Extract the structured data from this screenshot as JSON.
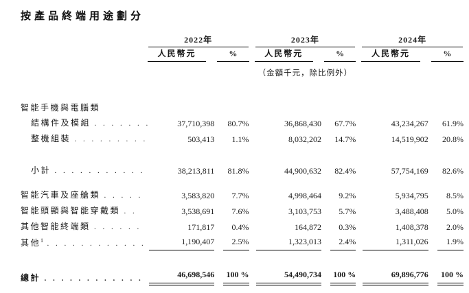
{
  "page": {
    "title": "按產品終端用途劃分"
  },
  "table": {
    "years": [
      "2022年",
      "2023年",
      "2024年"
    ],
    "col_headers": {
      "currency": "人民幣元",
      "percent": "%"
    },
    "unit_note": "（金額千元，除比例外）",
    "rows": [
      {
        "label": "智能手機與電腦類",
        "dots": "",
        "values": [
          "",
          "",
          "",
          "",
          "",
          ""
        ]
      },
      {
        "label": "結構件及模組",
        "dots": ". . . . . . .",
        "values": [
          "37,710,398",
          "80.7%",
          "36,868,430",
          "67.7%",
          "43,234,267",
          "61.9%"
        ]
      },
      {
        "label": "整機組裝",
        "dots": ". . . . . . . . . .",
        "values": [
          "503,413",
          "1.1%",
          "8,032,202",
          "14.7%",
          "14,519,902",
          "20.8%"
        ]
      },
      {
        "label": "小計",
        "dots": ". . . . . . . . . . . .",
        "values": [
          "38,213,811",
          "81.8%",
          "44,900,632",
          "82.4%",
          "57,754,169",
          "82.6%"
        ]
      },
      {
        "label": "智能汽車及座艙類",
        "dots": ". . . . .",
        "values": [
          "3,583,820",
          "7.7%",
          "4,998,464",
          "9.2%",
          "5,934,795",
          "8.5%"
        ]
      },
      {
        "label": "智能頭顯與智能穿戴類",
        "dots": ". .",
        "values": [
          "3,538,691",
          "7.6%",
          "3,103,753",
          "5.7%",
          "3,488,408",
          "5.0%"
        ]
      },
      {
        "label": "其他智能終端類",
        "dots": ". . . . . .",
        "values": [
          "171,817",
          "0.4%",
          "164,872",
          "0.3%",
          "1,408,378",
          "2.0%"
        ]
      },
      {
        "label": "其他",
        "sup": "1",
        "dots": ". . . . . . . . . . . . .",
        "values": [
          "1,190,407",
          "2.5%",
          "1,323,013",
          "2.4%",
          "1,311,026",
          "1.9%"
        ]
      },
      {
        "label": "總計",
        "dots": ". . . . . . . . . . . .",
        "values": [
          "46,698,546",
          "100 %",
          "54,490,734",
          "100 %",
          "69,896,776",
          "100 %"
        ]
      }
    ]
  }
}
